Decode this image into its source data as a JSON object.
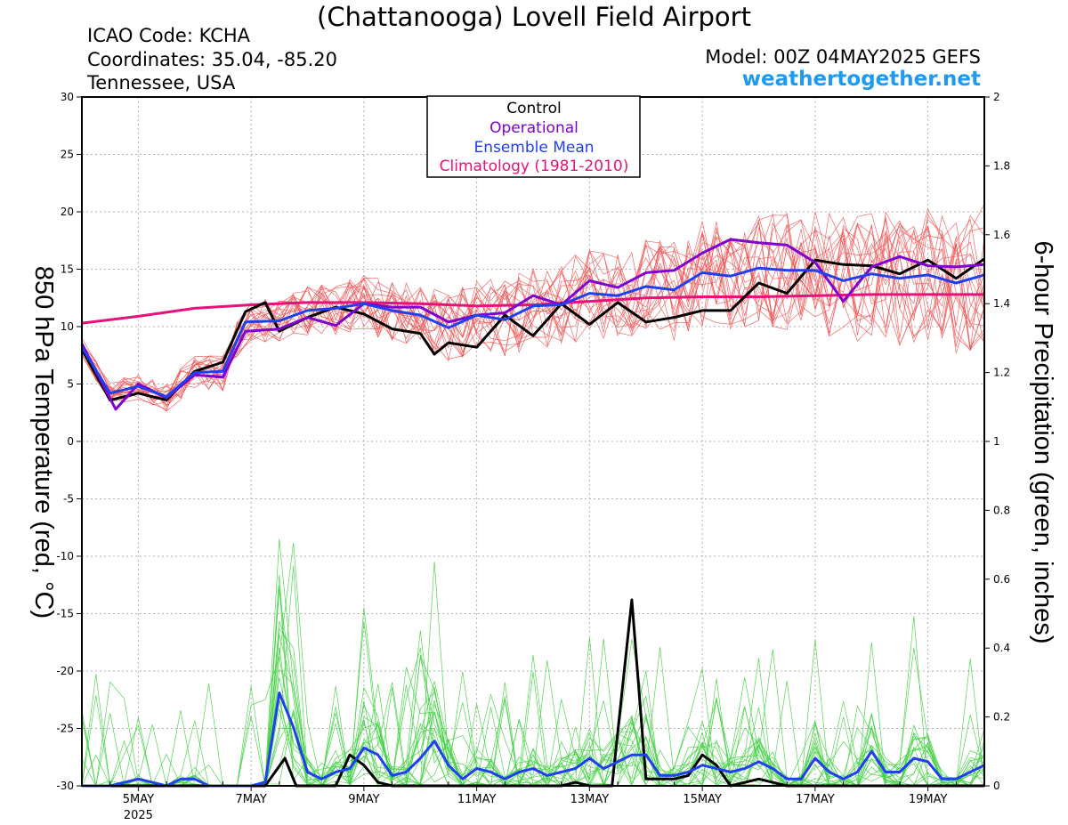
{
  "header": {
    "title": "(Chattanooga) Lovell Field Airport",
    "icao": "ICAO Code: KCHA",
    "coordinates": "Coordinates: 35.04, -85.20",
    "location": "Tennessee, USA",
    "model": "Model: 00Z 04MAY2025 GEFS",
    "site": "weathertogether.net"
  },
  "colors": {
    "control": "#000000",
    "operational": "#8000d0",
    "ensemble_mean": "#2040f0",
    "climatology": "#e8107a",
    "members_temp": "#f05050",
    "members_precip": "#40d040",
    "site": "#1e9bf0"
  },
  "chart_data": {
    "type": "line",
    "xlabel": "",
    "ylabel": "850 hPa Temperature (red, °C)",
    "y2label": "6-hour Precipitation (green, inches)",
    "x_unit": "days since 00Z 04 May 2025",
    "xlim": [
      0,
      16
    ],
    "ylim": [
      -30,
      30
    ],
    "y2lim": [
      0,
      2
    ],
    "yticks": [
      30,
      25,
      20,
      15,
      10,
      5,
      0,
      -5,
      -10,
      -15,
      -20,
      -25,
      -30
    ],
    "y2ticks": [
      "2",
      "1.8",
      "1.6",
      "1.4",
      "1.2",
      "1",
      "0.8",
      "0.6",
      "0.4",
      "0.2",
      "0"
    ],
    "xticks": [
      {
        "x": 1,
        "label": "5MAY",
        "sub": "2025"
      },
      {
        "x": 3,
        "label": "7MAY",
        "sub": ""
      },
      {
        "x": 5,
        "label": "9MAY",
        "sub": ""
      },
      {
        "x": 7,
        "label": "11MAY",
        "sub": ""
      },
      {
        "x": 9,
        "label": "13MAY",
        "sub": ""
      },
      {
        "x": 11,
        "label": "15MAY",
        "sub": ""
      },
      {
        "x": 13,
        "label": "17MAY",
        "sub": ""
      },
      {
        "x": 15,
        "label": "19MAY",
        "sub": ""
      }
    ],
    "grid": true,
    "legend": {
      "placement": "top-center",
      "entries": [
        {
          "label": "Control",
          "color": "#000000"
        },
        {
          "label": "Operational",
          "color": "#8000d0"
        },
        {
          "label": "Ensemble Mean",
          "color": "#2040f0"
        },
        {
          "label": "Climatology (1981-2010)",
          "color": "#e8107a"
        }
      ]
    },
    "temperature": {
      "control": [
        [
          0,
          8.0
        ],
        [
          0.5,
          3.6
        ],
        [
          1,
          4.2
        ],
        [
          1.5,
          3.6
        ],
        [
          2,
          6.1
        ],
        [
          2.5,
          6.9
        ],
        [
          2.9,
          11.3
        ],
        [
          3.25,
          12.1
        ],
        [
          3.5,
          9.6
        ],
        [
          4,
          10.8
        ],
        [
          4.5,
          11.7
        ],
        [
          5,
          11.1
        ],
        [
          5.5,
          9.8
        ],
        [
          6,
          9.4
        ],
        [
          6.25,
          7.6
        ],
        [
          6.5,
          8.6
        ],
        [
          7,
          8.2
        ],
        [
          7.5,
          11.0
        ],
        [
          8,
          9.2
        ],
        [
          8.5,
          12.0
        ],
        [
          9,
          10.2
        ],
        [
          9.5,
          12.1
        ],
        [
          10,
          10.4
        ],
        [
          10.5,
          10.8
        ],
        [
          11,
          11.4
        ],
        [
          11.5,
          11.4
        ],
        [
          12,
          13.8
        ],
        [
          12.5,
          12.9
        ],
        [
          13,
          15.8
        ],
        [
          13.5,
          15.4
        ],
        [
          14,
          15.3
        ],
        [
          14.5,
          14.6
        ],
        [
          15,
          15.8
        ],
        [
          15.5,
          14.2
        ],
        [
          16,
          15.9
        ]
      ],
      "operational": [
        [
          0,
          8.5
        ],
        [
          0.6,
          2.8
        ],
        [
          1,
          5.0
        ],
        [
          1.5,
          3.8
        ],
        [
          2,
          5.8
        ],
        [
          2.5,
          5.6
        ],
        [
          2.9,
          9.6
        ],
        [
          3.5,
          9.8
        ],
        [
          4,
          10.8
        ],
        [
          4.5,
          10.1
        ],
        [
          5,
          12.0
        ],
        [
          5.5,
          11.7
        ],
        [
          6,
          11.7
        ],
        [
          6.5,
          10.4
        ],
        [
          7,
          11.0
        ],
        [
          7.5,
          11.2
        ],
        [
          8,
          12.7
        ],
        [
          8.5,
          11.9
        ],
        [
          9,
          14.0
        ],
        [
          9.5,
          13.4
        ],
        [
          10,
          14.7
        ],
        [
          10.5,
          14.9
        ],
        [
          11,
          16.4
        ],
        [
          11.5,
          17.6
        ],
        [
          12,
          17.3
        ],
        [
          12.5,
          17.1
        ],
        [
          13,
          15.6
        ],
        [
          13.5,
          12.2
        ],
        [
          14,
          15.2
        ],
        [
          14.5,
          16.1
        ],
        [
          15,
          15.3
        ],
        [
          15.5,
          15.2
        ],
        [
          16,
          15.4
        ]
      ],
      "ensemble_mean": [
        [
          0,
          8.2
        ],
        [
          0.5,
          4.2
        ],
        [
          1,
          4.8
        ],
        [
          1.5,
          3.9
        ],
        [
          2,
          6.0
        ],
        [
          2.5,
          6.1
        ],
        [
          2.9,
          10.4
        ],
        [
          3.5,
          10.5
        ],
        [
          4,
          11.4
        ],
        [
          4.5,
          11.6
        ],
        [
          5,
          12.0
        ],
        [
          5.5,
          11.4
        ],
        [
          6,
          11.0
        ],
        [
          6.5,
          9.9
        ],
        [
          7,
          11.0
        ],
        [
          7.5,
          10.6
        ],
        [
          8,
          11.8
        ],
        [
          8.5,
          11.9
        ],
        [
          9,
          12.9
        ],
        [
          9.5,
          12.7
        ],
        [
          10,
          13.5
        ],
        [
          10.5,
          13.2
        ],
        [
          11,
          14.7
        ],
        [
          11.5,
          14.4
        ],
        [
          12,
          15.1
        ],
        [
          12.5,
          14.9
        ],
        [
          13,
          14.9
        ],
        [
          13.5,
          14.0
        ],
        [
          14,
          14.6
        ],
        [
          14.5,
          14.2
        ],
        [
          15,
          14.5
        ],
        [
          15.5,
          13.8
        ],
        [
          16,
          14.5
        ]
      ],
      "climatology": [
        [
          0,
          10.3
        ],
        [
          1,
          10.9
        ],
        [
          2,
          11.6
        ],
        [
          3,
          11.9
        ],
        [
          4,
          12.1
        ],
        [
          5,
          12.1
        ],
        [
          6,
          12.0
        ],
        [
          7,
          11.8
        ],
        [
          8,
          11.9
        ],
        [
          9,
          12.2
        ],
        [
          10,
          12.5
        ],
        [
          11,
          12.6
        ],
        [
          12,
          12.6
        ],
        [
          13,
          12.7
        ],
        [
          14,
          12.8
        ],
        [
          15,
          12.8
        ],
        [
          16,
          12.8
        ]
      ]
    },
    "precipitation": {
      "control": [
        [
          0,
          0
        ],
        [
          2.75,
          0
        ],
        [
          3.25,
          0
        ],
        [
          3.6,
          0.08
        ],
        [
          3.8,
          0
        ],
        [
          4.5,
          0
        ],
        [
          4.75,
          0.09
        ],
        [
          5,
          0.06
        ],
        [
          5.25,
          0.01
        ],
        [
          5.5,
          0
        ],
        [
          8.5,
          0
        ],
        [
          8.75,
          0.01
        ],
        [
          9,
          0
        ],
        [
          9.4,
          0
        ],
        [
          9.75,
          0.54
        ],
        [
          10,
          0.02
        ],
        [
          10.5,
          0.02
        ],
        [
          10.75,
          0.03
        ],
        [
          11,
          0.09
        ],
        [
          11.25,
          0.06
        ],
        [
          11.5,
          0
        ],
        [
          12,
          0.02
        ],
        [
          12.25,
          0.01
        ],
        [
          12.5,
          0
        ],
        [
          16,
          0
        ]
      ],
      "ensemble_mean": [
        [
          0,
          0
        ],
        [
          0.5,
          0
        ],
        [
          1,
          0.02
        ],
        [
          1.25,
          0.01
        ],
        [
          1.5,
          0
        ],
        [
          1.75,
          0.02
        ],
        [
          2,
          0.02
        ],
        [
          2.25,
          0
        ],
        [
          3,
          0
        ],
        [
          3.25,
          0.01
        ],
        [
          3.5,
          0.27
        ],
        [
          3.75,
          0.17
        ],
        [
          4,
          0.04
        ],
        [
          4.25,
          0.02
        ],
        [
          4.5,
          0.04
        ],
        [
          4.75,
          0.05
        ],
        [
          5,
          0.11
        ],
        [
          5.25,
          0.09
        ],
        [
          5.5,
          0.03
        ],
        [
          5.75,
          0.04
        ],
        [
          6,
          0.08
        ],
        [
          6.25,
          0.13
        ],
        [
          6.5,
          0.06
        ],
        [
          6.75,
          0.02
        ],
        [
          7,
          0.05
        ],
        [
          7.25,
          0.04
        ],
        [
          7.5,
          0.02
        ],
        [
          7.75,
          0.04
        ],
        [
          8,
          0.05
        ],
        [
          8.25,
          0.03
        ],
        [
          8.5,
          0.04
        ],
        [
          8.75,
          0.05
        ],
        [
          9,
          0.08
        ],
        [
          9.25,
          0.05
        ],
        [
          9.5,
          0.07
        ],
        [
          9.75,
          0.09
        ],
        [
          10,
          0.09
        ],
        [
          10.25,
          0.03
        ],
        [
          10.5,
          0.03
        ],
        [
          10.75,
          0.04
        ],
        [
          11,
          0.06
        ],
        [
          11.25,
          0.05
        ],
        [
          11.5,
          0.04
        ],
        [
          11.75,
          0.05
        ],
        [
          12,
          0.07
        ],
        [
          12.25,
          0.05
        ],
        [
          12.5,
          0.02
        ],
        [
          12.75,
          0.02
        ],
        [
          13,
          0.08
        ],
        [
          13.25,
          0.04
        ],
        [
          13.5,
          0.02
        ],
        [
          13.75,
          0.04
        ],
        [
          14,
          0.1
        ],
        [
          14.25,
          0.04
        ],
        [
          14.5,
          0.04
        ],
        [
          14.75,
          0.08
        ],
        [
          15,
          0.07
        ],
        [
          15.25,
          0.02
        ],
        [
          15.5,
          0.02
        ],
        [
          15.75,
          0.04
        ],
        [
          16,
          0.06
        ]
      ]
    }
  }
}
